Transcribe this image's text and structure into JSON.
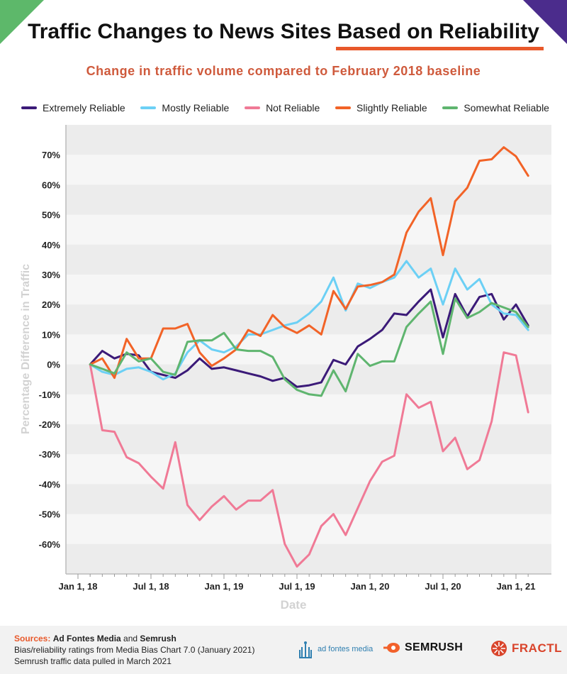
{
  "title": {
    "part1": "Traffic Changes to News Sites ",
    "highlight": "Based on Reliability"
  },
  "subtitle": "Change in traffic volume compared to February 2018 baseline",
  "colors": {
    "Extremely Reliable": "#3b1a78",
    "Mostly Reliable": "#6cd0f5",
    "Not Reliable": "#f07a96",
    "Slightly Reliable": "#f26327",
    "Somewhat Reliable": "#5fb56f"
  },
  "chart_data": {
    "type": "line",
    "xlabel": "Date",
    "ylabel": "Percentage Difference in Traffic",
    "ylim": [
      -70,
      80
    ],
    "grid": "horizontal bands",
    "legend": "top",
    "yticks": [
      -60,
      -50,
      -40,
      -30,
      -20,
      -10,
      0,
      10,
      20,
      30,
      40,
      50,
      60,
      70
    ],
    "ytick_labels": [
      "-60%",
      "-50%",
      "-40%",
      "-30%",
      "-20%",
      "-10%",
      "0%",
      "10%",
      "20%",
      "30%",
      "40%",
      "50%",
      "60%",
      "70%"
    ],
    "xticks": [
      {
        "month": 0,
        "label": "Jan 1, 18"
      },
      {
        "month": 6,
        "label": "Jul 1, 18"
      },
      {
        "month": 12,
        "label": "Jan 1, 19"
      },
      {
        "month": 18,
        "label": "Jul 1, 19"
      },
      {
        "month": 24,
        "label": "Jan 1, 20"
      },
      {
        "month": 30,
        "label": "Jul 1, 20"
      },
      {
        "month": 36,
        "label": "Jan 1, 21"
      }
    ],
    "x_start_month": 1,
    "x_end_month": 37,
    "series": [
      {
        "name": "Extremely Reliable",
        "values": [
          0,
          4.5,
          2,
          3.5,
          3,
          -2.5,
          -3.5,
          -4.5,
          -2,
          2,
          -1.5,
          -1,
          -2,
          -3,
          -4,
          -5.5,
          -4.5,
          -7.5,
          -7,
          -6,
          1.5,
          0,
          6,
          8.5,
          11.5,
          17,
          16.5,
          21,
          25,
          9,
          23.5,
          16,
          22.5,
          23.5,
          15,
          20,
          13
        ]
      },
      {
        "name": "Mostly Reliable",
        "values": [
          0,
          -2.5,
          -3.5,
          -1.5,
          -1,
          -2.5,
          -5,
          -3,
          4,
          8,
          5,
          4,
          6,
          10,
          10,
          11.5,
          13,
          14,
          17,
          21,
          29,
          18,
          27,
          25.5,
          27.5,
          29,
          34.5,
          29,
          32,
          20,
          32,
          25,
          28.5,
          20,
          17,
          16.5,
          11.5
        ]
      },
      {
        "name": "Not Reliable",
        "values": [
          0,
          -22,
          -22.5,
          -31,
          -33,
          -37.5,
          -41.5,
          -26,
          -47,
          -52,
          -47.5,
          -44,
          -48.5,
          -45.5,
          -45.5,
          -42,
          -60,
          -67.5,
          -63.5,
          -54,
          -50,
          -57,
          -48,
          -39,
          -32.5,
          -30.5,
          -10,
          -14.5,
          -12.5,
          -29,
          -24.5,
          -35,
          -32,
          -19,
          4,
          3,
          -16
        ]
      },
      {
        "name": "Slightly Reliable",
        "values": [
          0,
          2,
          -4.5,
          8.5,
          2,
          2,
          12,
          12,
          13.5,
          4,
          -0.5,
          2,
          5,
          11.5,
          9.5,
          16.5,
          12.5,
          10.5,
          13,
          10,
          24.5,
          18.5,
          26,
          26.5,
          27.5,
          30,
          44,
          51,
          55.5,
          36.5,
          54.5,
          59,
          68,
          68.5,
          72.5,
          69.5,
          63
        ]
      },
      {
        "name": "Somewhat Reliable",
        "values": [
          0,
          -1.5,
          -3,
          4,
          1,
          2,
          -2.5,
          -3.5,
          7.5,
          8,
          8,
          10.5,
          5,
          4.5,
          4.5,
          2.5,
          -5,
          -8.5,
          -10,
          -10.5,
          -2,
          -9,
          3.5,
          -0.5,
          1,
          1,
          12.5,
          17,
          21,
          3.5,
          22,
          15.5,
          17.5,
          20.5,
          19,
          17.5,
          12.5
        ]
      }
    ]
  },
  "footer": {
    "sources_label": "Sources:",
    "source1": "Ad Fontes Media",
    "and": " and ",
    "source2": "Semrush",
    "line2": "Bias/reliability ratings from Media Bias Chart 7.0 (January 2021)",
    "line3": "Semrush traffic data pulled in March 2021"
  },
  "logos": {
    "adfontes": "ad fontes media",
    "semrush": "SEMRUSH",
    "fractl": "FRACTL"
  }
}
